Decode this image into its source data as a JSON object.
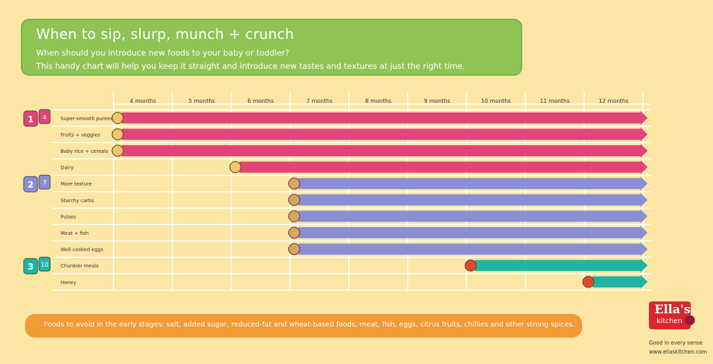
{
  "header": {
    "title": "When to sip, slurp, munch + crunch",
    "subtitle_line1": "When should you introduce new foods to your baby or toddler?",
    "subtitle_line2": "This handy chart will help you keep it straight and introduce new tastes and textures at just the right time."
  },
  "chart_data": {
    "type": "timeline",
    "columns": [
      "4 months",
      "5 months",
      "6 months",
      "7 months",
      "8 months",
      "9 months",
      "10 months",
      "11 months",
      "12 months"
    ],
    "stages": [
      {
        "number": "1",
        "months": "4"
      },
      {
        "number": "2",
        "months": "7"
      },
      {
        "number": "3",
        "months": "10"
      }
    ],
    "rows": [
      {
        "label": "Super-smooth purees",
        "start": "4 months",
        "stage": 1,
        "icon": "spoon-icon"
      },
      {
        "label": "Fruits + veggies",
        "start": "4 months",
        "stage": 1,
        "icon": "apple-carrot-icon"
      },
      {
        "label": "Baby rice + cereals",
        "start": "4 months",
        "stage": 1,
        "icon": "cereal-icon"
      },
      {
        "label": "Dairy",
        "start": "6 months",
        "stage": 1,
        "icon": "milk-icon"
      },
      {
        "label": "More texture",
        "start": "7 months",
        "stage": 2,
        "icon": "bowl-icon"
      },
      {
        "label": "Starchy carbs",
        "start": "7 months",
        "stage": 2,
        "icon": "bread-icon"
      },
      {
        "label": "Pulses",
        "start": "7 months",
        "stage": 2,
        "icon": "beans-icon"
      },
      {
        "label": "Meat + fish",
        "start": "7 months",
        "stage": 2,
        "icon": "meat-icon"
      },
      {
        "label": "Well-cooked eggs",
        "start": "7 months",
        "stage": 2,
        "icon": "eggs-icon"
      },
      {
        "label": "Chunkier meals",
        "start": "10 months",
        "stage": 3,
        "icon": "meal-bowl-icon"
      },
      {
        "label": "Honey",
        "start": "12 months",
        "stage": 3,
        "icon": "honey-pot-icon"
      }
    ],
    "stage_colors": {
      "1": "#e2447a",
      "2": "#8a8fd3",
      "3": "#20b4a5"
    }
  },
  "footer": {
    "avoid_text": "Foods to avoid in the early stages: salt, added sugar, reduced-fat and wheat-based foods, meat, fish, eggs, citrus fruits, chillies and other strong spices."
  },
  "brand": {
    "name_line1": "Ella's",
    "name_line2": "kitchen",
    "tagline": "Good in every sense",
    "url": "www.ellaskitchen.com"
  }
}
